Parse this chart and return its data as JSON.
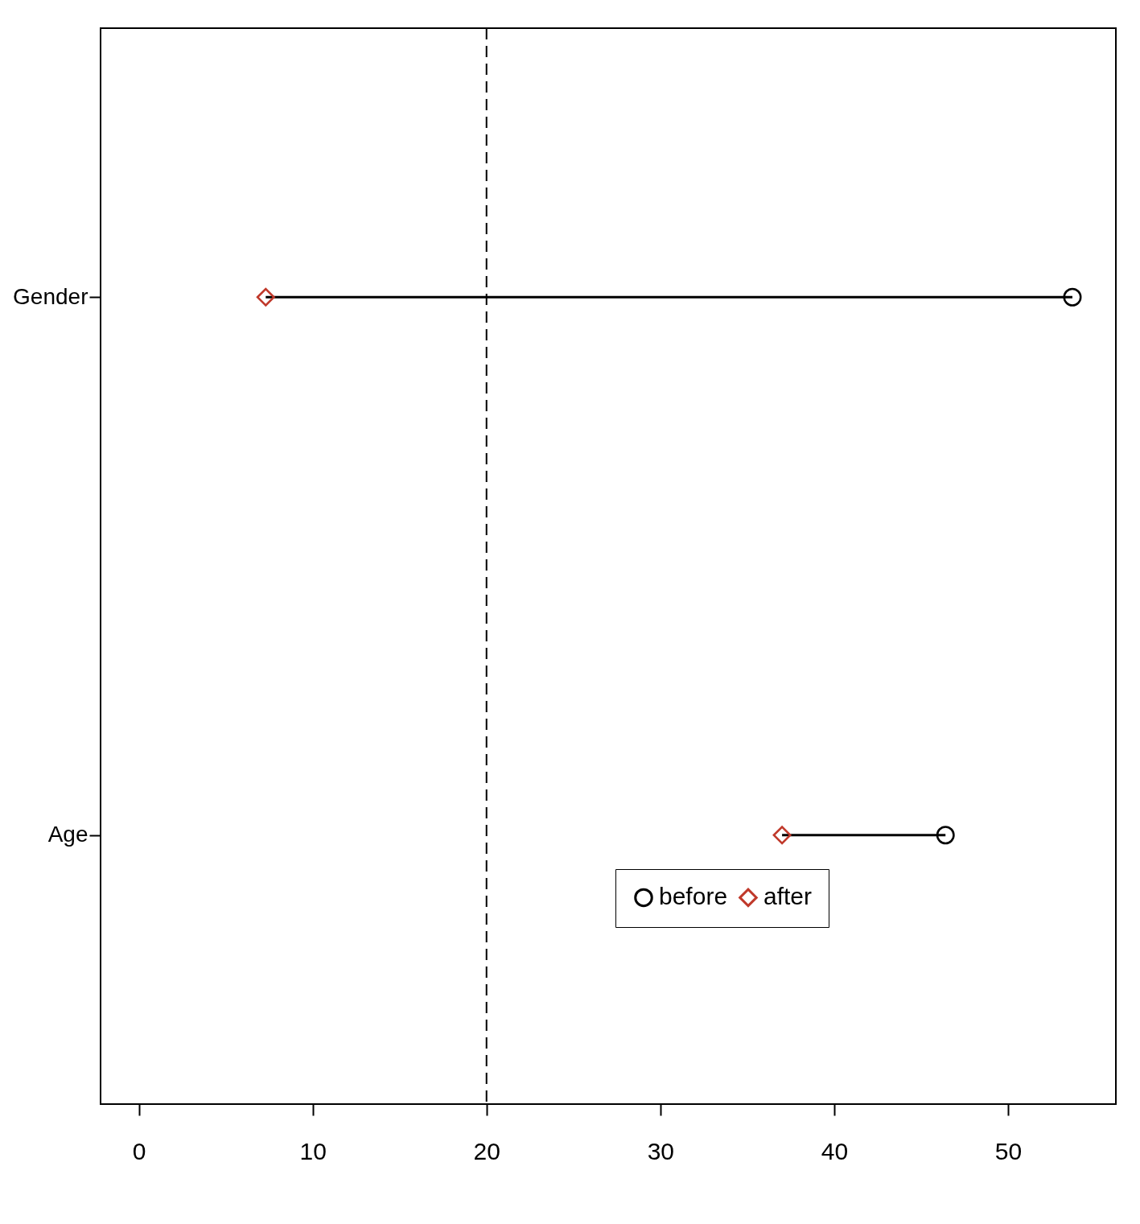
{
  "chart_data": {
    "type": "scatter",
    "orientation": "horizontal",
    "categories": [
      "Gender",
      "Age"
    ],
    "series": [
      {
        "name": "before",
        "color": "#000000",
        "marker": "circle",
        "values": [
          53.7,
          46.4
        ]
      },
      {
        "name": "after",
        "color": "#c0392b",
        "marker": "diamond",
        "values": [
          7.3,
          37.0
        ]
      }
    ],
    "xlim": [
      -2.2,
      56.2
    ],
    "xticks": [
      0,
      10,
      20,
      30,
      40,
      50
    ],
    "ref_lines": [
      {
        "axis": "x",
        "value": 20,
        "line_style": "dashed",
        "color": "#000000"
      }
    ],
    "legend": "bottom",
    "grid": false
  }
}
